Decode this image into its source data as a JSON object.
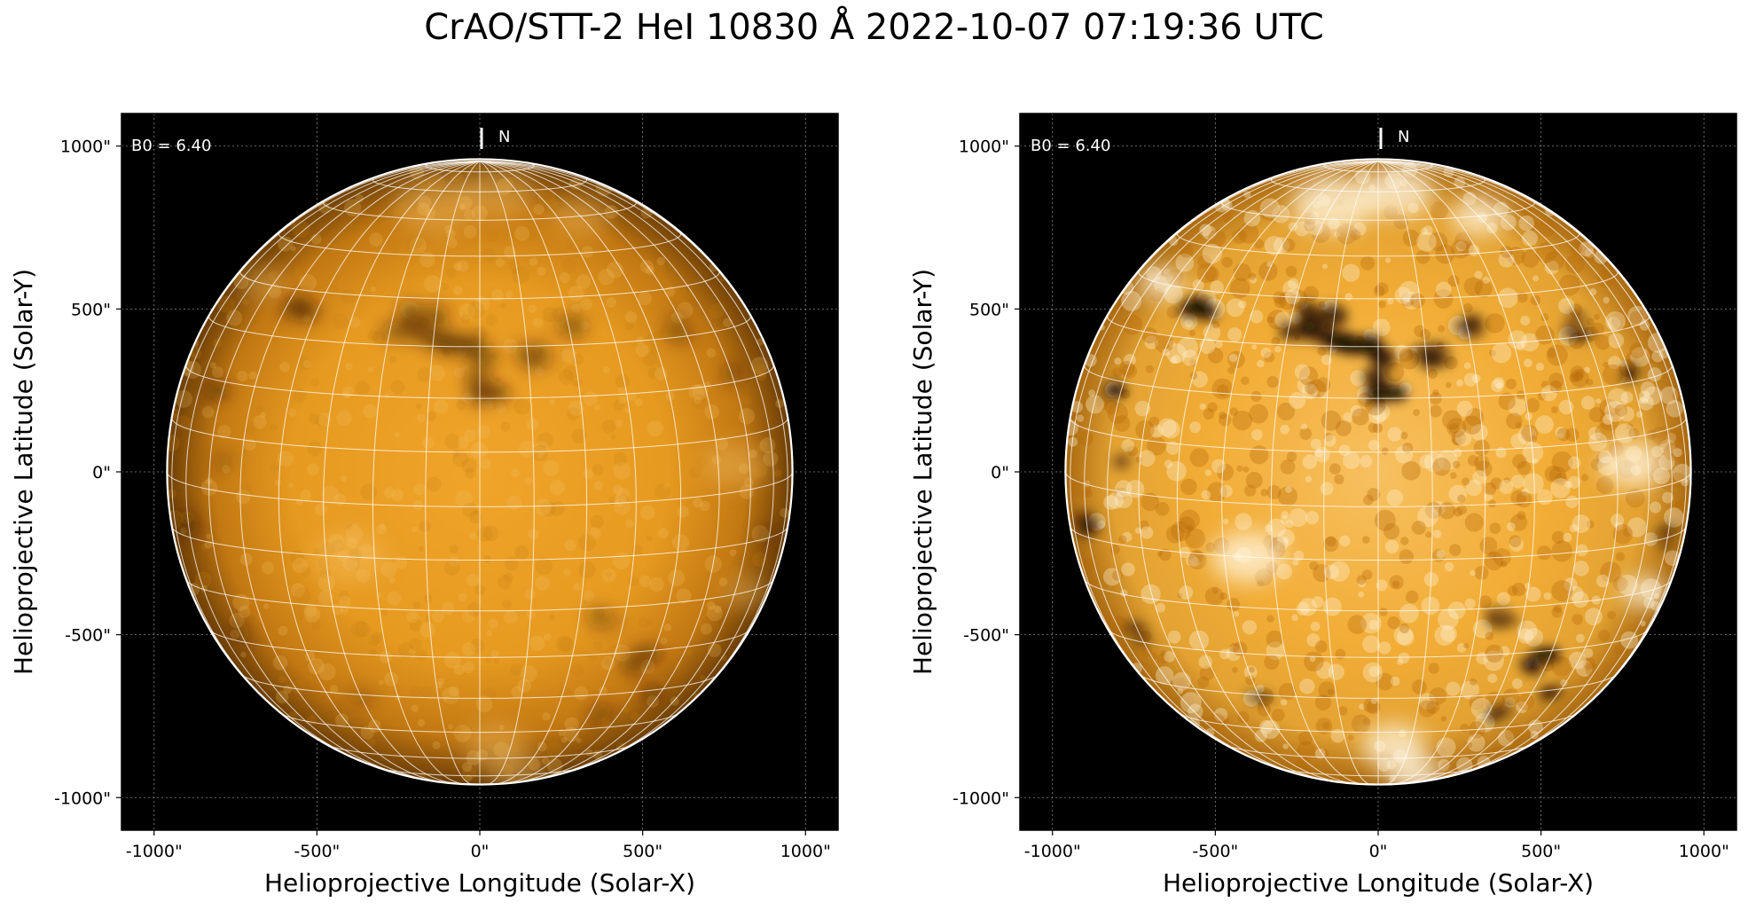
{
  "title": "CrAO/STT-2 HeI 10830 Å 2022-10-07 07:19:36 UTC",
  "colors": {
    "background": "#000000",
    "disk_center": "#f0a42a",
    "disk_mid": "#d88a16",
    "disk_limb": "#6b3d05",
    "grid": "#ffffff",
    "frame": "#000000"
  },
  "panels": [
    {
      "id": "left",
      "variant": "standard-contrast",
      "b0_label": "B0 = 6.40",
      "north_label": "N",
      "xlabel": "Helioprojective Longitude (Solar-X)",
      "ylabel": "Helioprojective Latitude (Solar-Y)",
      "x_ticks": [
        "-1000\"",
        "-500\"",
        "0\"",
        "500\"",
        "1000\""
      ],
      "y_ticks": [
        "1000\"",
        "500\"",
        "0\"",
        "-500\"",
        "-1000\""
      ],
      "x_tick_values": [
        -1000,
        -500,
        0,
        500,
        1000
      ],
      "y_tick_values": [
        1000,
        500,
        0,
        -500,
        -1000
      ],
      "axis_range_arcsec": [
        -1100,
        1100
      ],
      "solar_radius_arcsec": 960,
      "b0_deg": 6.4
    },
    {
      "id": "right",
      "variant": "enhanced-contrast",
      "b0_label": "B0 = 6.40",
      "north_label": "N",
      "xlabel": "Helioprojective Longitude (Solar-X)",
      "ylabel": "Helioprojective Latitude (Solar-Y)",
      "x_ticks": [
        "-1000\"",
        "-500\"",
        "0\"",
        "500\"",
        "1000\""
      ],
      "y_ticks": [
        "1000\"",
        "500\"",
        "0\"",
        "-500\"",
        "-1000\""
      ],
      "x_tick_values": [
        -1000,
        -500,
        0,
        500,
        1000
      ],
      "y_tick_values": [
        1000,
        500,
        0,
        -500,
        -1000
      ],
      "axis_range_arcsec": [
        -1100,
        1100
      ],
      "solar_radius_arcsec": 960,
      "b0_deg": 6.4
    }
  ]
}
